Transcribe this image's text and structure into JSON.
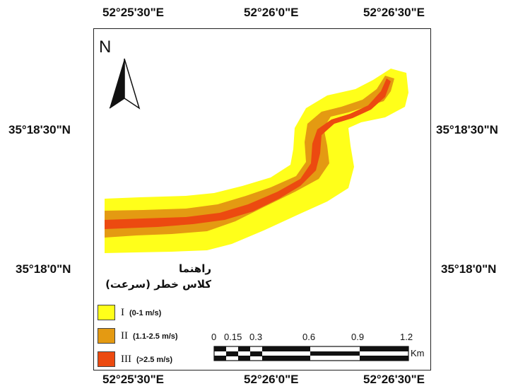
{
  "map": {
    "top_lon_labels": [
      "52°25'30\"E",
      "52°26'0\"E",
      "52°26'30\"E"
    ],
    "bottom_lon_labels": [
      "52°25'30\"E",
      "52°26'0\"E",
      "52°26'30\"E"
    ],
    "left_lat_labels": [
      "35°18'30\"N",
      "35°18'0\"N"
    ],
    "right_lat_labels": [
      "35°18'30\"N",
      "35°18'0\"N"
    ]
  },
  "north_arrow": {
    "label": "N",
    "icon": "north-arrow-icon"
  },
  "legend": {
    "title_line1": "راهنما",
    "title_line2": "کلاس خطر (سرعت)",
    "items": [
      {
        "roman": "I",
        "range": "(0-1 m/s)",
        "color": "#ffff1a"
      },
      {
        "roman": "II",
        "range": "(1.1-2.5 m/s)",
        "color": "#e49a12"
      },
      {
        "roman": "III",
        "range": "(>2.5 m/s)",
        "color": "#ec4a10"
      }
    ]
  },
  "scale_bar": {
    "ticks": [
      "0",
      "0.15",
      "0.3",
      "0.6",
      "0.9",
      "1.2"
    ],
    "unit": "Km"
  }
}
